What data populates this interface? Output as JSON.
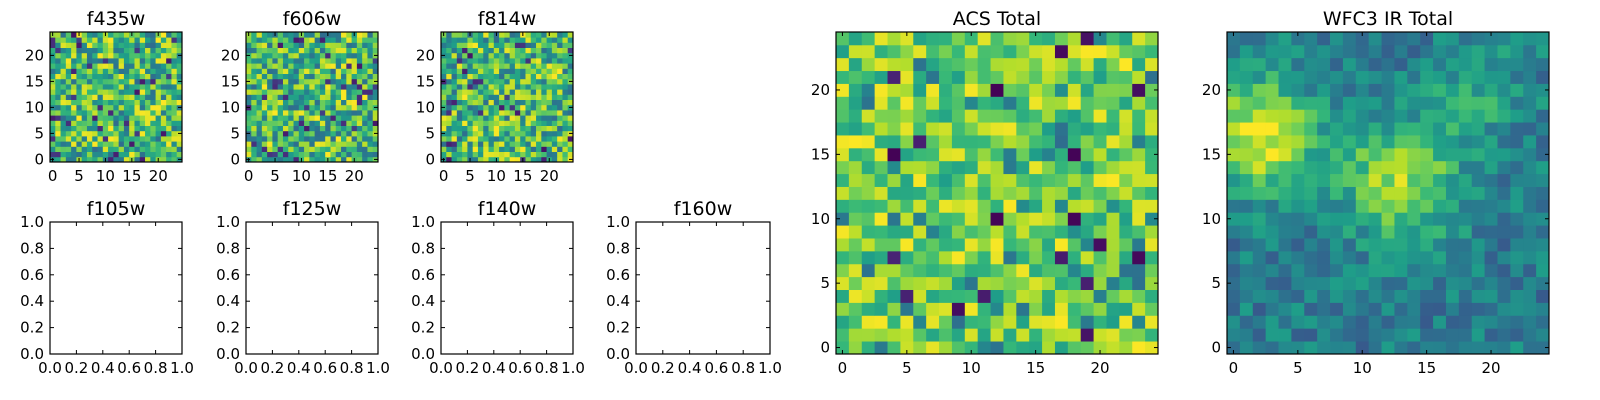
{
  "chart_data": [
    {
      "type": "heatmap",
      "title": "f435w",
      "colormap": "viridis",
      "grid": false,
      "xlim": [
        -0.5,
        24.5
      ],
      "ylim": [
        -0.5,
        24.5
      ],
      "xticks": [
        0,
        5,
        10,
        15,
        20
      ],
      "yticks": [
        0,
        5,
        10,
        15,
        20
      ],
      "pattern": "noise",
      "seed": 11,
      "values": []
    },
    {
      "type": "heatmap",
      "title": "f606w",
      "colormap": "viridis",
      "grid": false,
      "xlim": [
        -0.5,
        24.5
      ],
      "ylim": [
        -0.5,
        24.5
      ],
      "xticks": [
        0,
        5,
        10,
        15,
        20
      ],
      "yticks": [
        0,
        5,
        10,
        15,
        20
      ],
      "pattern": "noise",
      "seed": 23,
      "values": []
    },
    {
      "type": "heatmap",
      "title": "f814w",
      "colormap": "viridis",
      "grid": false,
      "xlim": [
        -0.5,
        24.5
      ],
      "ylim": [
        -0.5,
        24.5
      ],
      "xticks": [
        0,
        5,
        10,
        15,
        20
      ],
      "yticks": [
        0,
        5,
        10,
        15,
        20
      ],
      "pattern": "noise",
      "seed": 37,
      "values": []
    },
    {
      "type": "empty",
      "title": "f105w",
      "xlim": [
        0,
        1
      ],
      "ylim": [
        0,
        1
      ],
      "xticks": [
        0.0,
        0.2,
        0.4,
        0.6,
        0.8,
        1.0
      ],
      "yticks": [
        0.0,
        0.2,
        0.4,
        0.6,
        0.8,
        1.0
      ],
      "tick_decimals": 1
    },
    {
      "type": "empty",
      "title": "f125w",
      "xlim": [
        0,
        1
      ],
      "ylim": [
        0,
        1
      ],
      "xticks": [
        0.0,
        0.2,
        0.4,
        0.6,
        0.8,
        1.0
      ],
      "yticks": [
        0.0,
        0.2,
        0.4,
        0.6,
        0.8,
        1.0
      ],
      "tick_decimals": 1
    },
    {
      "type": "empty",
      "title": "f140w",
      "xlim": [
        0,
        1
      ],
      "ylim": [
        0,
        1
      ],
      "xticks": [
        0.0,
        0.2,
        0.4,
        0.6,
        0.8,
        1.0
      ],
      "yticks": [
        0.0,
        0.2,
        0.4,
        0.6,
        0.8,
        1.0
      ],
      "tick_decimals": 1
    },
    {
      "type": "empty",
      "title": "f160w",
      "xlim": [
        0,
        1
      ],
      "ylim": [
        0,
        1
      ],
      "xticks": [
        0.0,
        0.2,
        0.4,
        0.6,
        0.8,
        1.0
      ],
      "yticks": [
        0.0,
        0.2,
        0.4,
        0.6,
        0.8,
        1.0
      ],
      "tick_decimals": 1
    },
    {
      "type": "heatmap",
      "title": "ACS Total",
      "colormap": "viridis",
      "grid": false,
      "xlim": [
        -0.5,
        24.5
      ],
      "ylim": [
        -0.5,
        24.5
      ],
      "xticks": [
        0,
        5,
        10,
        15,
        20
      ],
      "yticks": [
        0,
        5,
        10,
        15,
        20
      ],
      "pattern": "noise-bright",
      "seed": 53,
      "values": []
    },
    {
      "type": "heatmap",
      "title": "WFC3 IR Total",
      "colormap": "viridis",
      "grid": false,
      "xlim": [
        -0.5,
        24.5
      ],
      "ylim": [
        -0.5,
        24.5
      ],
      "xticks": [
        0,
        5,
        10,
        15,
        20
      ],
      "yticks": [
        0,
        5,
        10,
        15,
        20
      ],
      "pattern": "smooth",
      "seed": 71,
      "values": []
    }
  ]
}
